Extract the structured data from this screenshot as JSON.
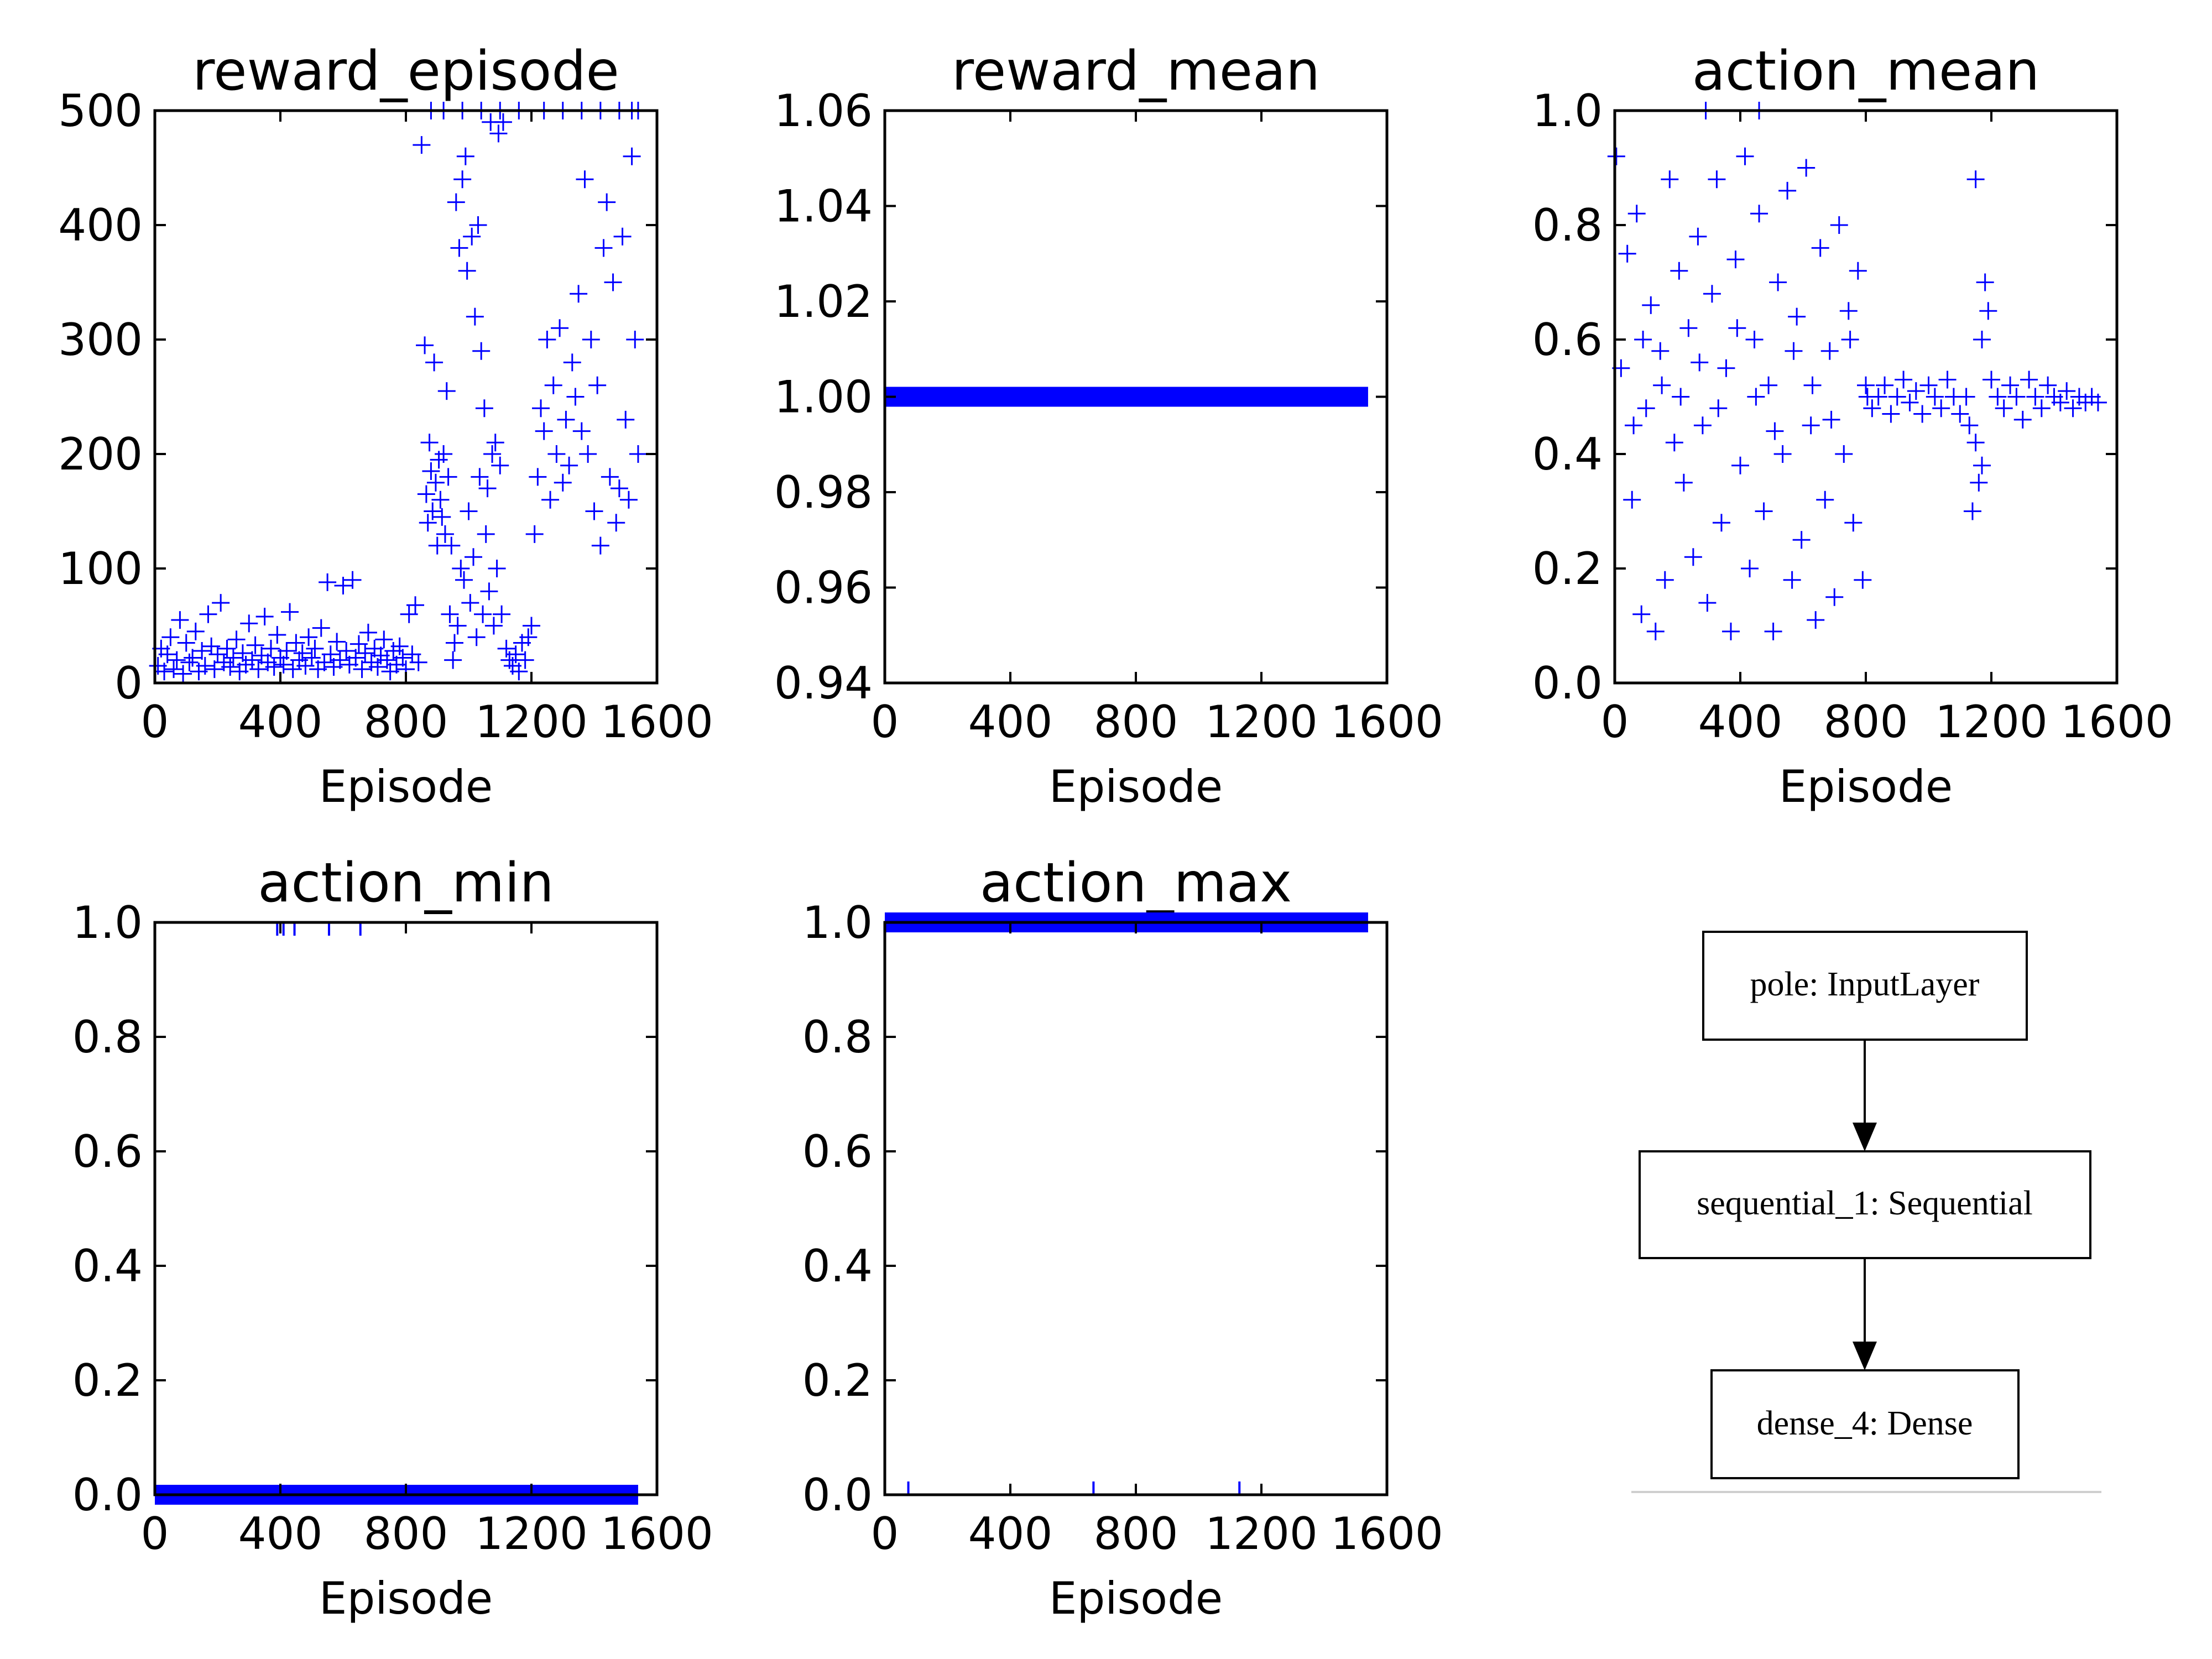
{
  "chart_data": [
    {
      "type": "scatter",
      "title": "reward_episode",
      "xlabel": "Episode",
      "ylabel": "",
      "xlim": [
        0,
        1600
      ],
      "ylim": [
        0,
        500
      ],
      "xticks": [
        "0",
        "400",
        "800",
        "1200",
        "1600"
      ],
      "yticks": [
        "0",
        "100",
        "200",
        "300",
        "400",
        "500"
      ],
      "marker": "+",
      "color": "#0000ff",
      "points": [
        [
          10,
          15
        ],
        [
          20,
          30
        ],
        [
          30,
          10
        ],
        [
          40,
          25
        ],
        [
          50,
          40
        ],
        [
          60,
          12
        ],
        [
          70,
          20
        ],
        [
          80,
          55
        ],
        [
          90,
          8
        ],
        [
          100,
          35
        ],
        [
          110,
          18
        ],
        [
          120,
          22
        ],
        [
          130,
          45
        ],
        [
          140,
          10
        ],
        [
          150,
          28
        ],
        [
          160,
          15
        ],
        [
          170,
          60
        ],
        [
          180,
          32
        ],
        [
          190,
          12
        ],
        [
          200,
          25
        ],
        [
          210,
          70
        ],
        [
          220,
          18
        ],
        [
          230,
          30
        ],
        [
          240,
          14
        ],
        [
          250,
          22
        ],
        [
          260,
          38
        ],
        [
          270,
          10
        ],
        [
          280,
          26
        ],
        [
          290,
          16
        ],
        [
          300,
          52
        ],
        [
          310,
          20
        ],
        [
          320,
          33
        ],
        [
          330,
          12
        ],
        [
          340,
          24
        ],
        [
          350,
          58
        ],
        [
          360,
          18
        ],
        [
          370,
          30
        ],
        [
          380,
          14
        ],
        [
          390,
          42
        ],
        [
          400,
          22
        ],
        [
          410,
          16
        ],
        [
          420,
          28
        ],
        [
          430,
          62
        ],
        [
          440,
          12
        ],
        [
          450,
          35
        ],
        [
          460,
          20
        ],
        [
          470,
          26
        ],
        [
          480,
          15
        ],
        [
          490,
          40
        ],
        [
          500,
          22
        ],
        [
          510,
          30
        ],
        [
          520,
          12
        ],
        [
          530,
          48
        ],
        [
          540,
          18
        ],
        [
          550,
          88
        ],
        [
          560,
          25
        ],
        [
          570,
          14
        ],
        [
          580,
          36
        ],
        [
          590,
          20
        ],
        [
          600,
          85
        ],
        [
          610,
          28
        ],
        [
          620,
          16
        ],
        [
          630,
          90
        ],
        [
          640,
          22
        ],
        [
          650,
          34
        ],
        [
          660,
          12
        ],
        [
          670,
          26
        ],
        [
          680,
          44
        ],
        [
          690,
          18
        ],
        [
          700,
          30
        ],
        [
          710,
          14
        ],
        [
          720,
          24
        ],
        [
          730,
          38
        ],
        [
          740,
          20
        ],
        [
          750,
          10
        ],
        [
          760,
          28
        ],
        [
          770,
          16
        ],
        [
          780,
          32
        ],
        [
          790,
          22
        ],
        [
          800,
          12
        ],
        [
          810,
          60
        ],
        [
          820,
          25
        ],
        [
          830,
          68
        ],
        [
          840,
          18
        ],
        [
          850,
          470
        ],
        [
          860,
          295
        ],
        [
          865,
          165
        ],
        [
          870,
          140
        ],
        [
          875,
          210
        ],
        [
          880,
          185
        ],
        [
          885,
          150
        ],
        [
          890,
          280
        ],
        [
          895,
          175
        ],
        [
          900,
          120
        ],
        [
          905,
          195
        ],
        [
          910,
          160
        ],
        [
          915,
          145
        ],
        [
          920,
          200
        ],
        [
          925,
          130
        ],
        [
          930,
          255
        ],
        [
          935,
          180
        ],
        [
          940,
          60
        ],
        [
          945,
          120
        ],
        [
          950,
          20
        ],
        [
          955,
          35
        ],
        [
          960,
          420
        ],
        [
          965,
          50
        ],
        [
          970,
          380
        ],
        [
          975,
          100
        ],
        [
          980,
          440
        ],
        [
          985,
          90
        ],
        [
          990,
          460
        ],
        [
          995,
          360
        ],
        [
          1000,
          150
        ],
        [
          1005,
          70
        ],
        [
          1010,
          390
        ],
        [
          1015,
          110
        ],
        [
          1020,
          320
        ],
        [
          1025,
          40
        ],
        [
          1030,
          400
        ],
        [
          1035,
          180
        ],
        [
          1040,
          290
        ],
        [
          1045,
          60
        ],
        [
          1050,
          240
        ],
        [
          1055,
          130
        ],
        [
          1060,
          170
        ],
        [
          1065,
          80
        ],
        [
          1070,
          490
        ],
        [
          1075,
          200
        ],
        [
          1080,
          50
        ],
        [
          1085,
          210
        ],
        [
          1090,
          100
        ],
        [
          1095,
          480
        ],
        [
          1100,
          190
        ],
        [
          1105,
          60
        ],
        [
          1110,
          490
        ],
        [
          1120,
          30
        ],
        [
          1130,
          20
        ],
        [
          1140,
          15
        ],
        [
          1150,
          25
        ],
        [
          1160,
          10
        ],
        [
          1170,
          35
        ],
        [
          1180,
          20
        ],
        [
          1190,
          40
        ],
        [
          1200,
          50
        ],
        [
          1210,
          130
        ],
        [
          1220,
          180
        ],
        [
          1230,
          240
        ],
        [
          1240,
          220
        ],
        [
          1250,
          300
        ],
        [
          1260,
          160
        ],
        [
          1270,
          260
        ],
        [
          1280,
          200
        ],
        [
          1290,
          310
        ],
        [
          1300,
          175
        ],
        [
          1310,
          230
        ],
        [
          1320,
          190
        ],
        [
          1330,
          280
        ],
        [
          1340,
          250
        ],
        [
          1350,
          340
        ],
        [
          1360,
          220
        ],
        [
          1370,
          440
        ],
        [
          1380,
          200
        ],
        [
          1390,
          300
        ],
        [
          1400,
          150
        ],
        [
          1410,
          260
        ],
        [
          1420,
          120
        ],
        [
          1430,
          380
        ],
        [
          1440,
          420
        ],
        [
          1450,
          180
        ],
        [
          1460,
          350
        ],
        [
          1470,
          140
        ],
        [
          1480,
          170
        ],
        [
          1490,
          390
        ],
        [
          1500,
          230
        ],
        [
          1510,
          160
        ],
        [
          1520,
          460
        ],
        [
          1530,
          300
        ],
        [
          1540,
          200
        ],
        [
          880,
          500
        ],
        [
          920,
          500
        ],
        [
          980,
          500
        ],
        [
          1040,
          500
        ],
        [
          1100,
          500
        ],
        [
          1160,
          500
        ],
        [
          1240,
          500
        ],
        [
          1300,
          500
        ],
        [
          1360,
          500
        ],
        [
          1420,
          500
        ],
        [
          1480,
          500
        ],
        [
          1520,
          500
        ],
        [
          1540,
          500
        ]
      ]
    },
    {
      "type": "line",
      "title": "reward_mean",
      "xlabel": "Episode",
      "ylabel": "",
      "xlim": [
        0,
        1600
      ],
      "ylim": [
        0.94,
        1.06
      ],
      "xticks": [
        "0",
        "400",
        "800",
        "1200",
        "1600"
      ],
      "yticks": [
        "0.94",
        "0.96",
        "0.98",
        "1.00",
        "1.02",
        "1.04",
        "1.06"
      ],
      "color": "#0000ff",
      "series": [
        {
          "x": [
            0,
            1540
          ],
          "y": [
            1.0,
            1.0
          ]
        }
      ]
    },
    {
      "type": "scatter",
      "title": "action_mean",
      "xlabel": "Episode",
      "ylabel": "",
      "xlim": [
        0,
        1600
      ],
      "ylim": [
        0.0,
        1.0
      ],
      "xticks": [
        "0",
        "400",
        "800",
        "1200",
        "1600"
      ],
      "yticks": [
        "0.0",
        "0.2",
        "0.4",
        "0.6",
        "0.8",
        "1.0"
      ],
      "marker": "+",
      "color": "#0000ff",
      "points": [
        [
          5,
          0.92
        ],
        [
          20,
          0.55
        ],
        [
          40,
          0.75
        ],
        [
          55,
          0.32
        ],
        [
          70,
          0.82
        ],
        [
          85,
          0.12
        ],
        [
          100,
          0.48
        ],
        [
          115,
          0.66
        ],
        [
          130,
          0.09
        ],
        [
          145,
          0.58
        ],
        [
          160,
          0.18
        ],
        [
          175,
          0.88
        ],
        [
          190,
          0.42
        ],
        [
          205,
          0.72
        ],
        [
          220,
          0.35
        ],
        [
          235,
          0.62
        ],
        [
          250,
          0.22
        ],
        [
          265,
          0.78
        ],
        [
          280,
          0.45
        ],
        [
          295,
          0.14
        ],
        [
          310,
          0.68
        ],
        [
          325,
          0.88
        ],
        [
          340,
          0.28
        ],
        [
          355,
          0.55
        ],
        [
          370,
          0.09
        ],
        [
          385,
          0.74
        ],
        [
          400,
          0.38
        ],
        [
          415,
          0.92
        ],
        [
          430,
          0.2
        ],
        [
          445,
          0.6
        ],
        [
          460,
          0.82
        ],
        [
          475,
          0.3
        ],
        [
          490,
          0.52
        ],
        [
          505,
          0.09
        ],
        [
          520,
          0.7
        ],
        [
          535,
          0.4
        ],
        [
          550,
          0.86
        ],
        [
          565,
          0.18
        ],
        [
          580,
          0.64
        ],
        [
          595,
          0.25
        ],
        [
          610,
          0.9
        ],
        [
          625,
          0.45
        ],
        [
          640,
          0.11
        ],
        [
          655,
          0.76
        ],
        [
          670,
          0.32
        ],
        [
          685,
          0.58
        ],
        [
          700,
          0.15
        ],
        [
          715,
          0.8
        ],
        [
          730,
          0.4
        ],
        [
          745,
          0.65
        ],
        [
          760,
          0.28
        ],
        [
          775,
          0.72
        ],
        [
          790,
          0.18
        ],
        [
          805,
          0.5
        ],
        [
          60,
          0.45
        ],
        [
          90,
          0.6
        ],
        [
          150,
          0.52
        ],
        [
          210,
          0.5
        ],
        [
          270,
          0.56
        ],
        [
          330,
          0.48
        ],
        [
          390,
          0.62
        ],
        [
          450,
          0.5
        ],
        [
          510,
          0.44
        ],
        [
          570,
          0.58
        ],
        [
          630,
          0.52
        ],
        [
          690,
          0.46
        ],
        [
          750,
          0.6
        ],
        [
          800,
          0.52
        ],
        [
          820,
          0.48
        ],
        [
          840,
          0.5
        ],
        [
          860,
          0.52
        ],
        [
          880,
          0.47
        ],
        [
          900,
          0.5
        ],
        [
          920,
          0.53
        ],
        [
          940,
          0.49
        ],
        [
          960,
          0.51
        ],
        [
          980,
          0.47
        ],
        [
          1000,
          0.52
        ],
        [
          1020,
          0.5
        ],
        [
          1040,
          0.48
        ],
        [
          1060,
          0.53
        ],
        [
          1080,
          0.5
        ],
        [
          1100,
          0.47
        ],
        [
          1120,
          0.5
        ],
        [
          1140,
          0.3
        ],
        [
          1150,
          0.42
        ],
        [
          1160,
          0.35
        ],
        [
          1170,
          0.6
        ],
        [
          1180,
          0.7
        ],
        [
          1190,
          0.65
        ],
        [
          1200,
          0.53
        ],
        [
          1220,
          0.5
        ],
        [
          1240,
          0.48
        ],
        [
          1260,
          0.52
        ],
        [
          1280,
          0.5
        ],
        [
          1300,
          0.46
        ],
        [
          1320,
          0.53
        ],
        [
          1340,
          0.5
        ],
        [
          1360,
          0.48
        ],
        [
          1380,
          0.52
        ],
        [
          1400,
          0.5
        ],
        [
          1420,
          0.49
        ],
        [
          1440,
          0.51
        ],
        [
          1460,
          0.48
        ],
        [
          1480,
          0.5
        ],
        [
          1500,
          0.49
        ],
        [
          1520,
          0.5
        ],
        [
          1540,
          0.49
        ],
        [
          1150,
          0.88
        ],
        [
          1130,
          0.45
        ],
        [
          1170,
          0.38
        ],
        [
          290,
          1.0
        ],
        [
          460,
          1.0
        ]
      ]
    },
    {
      "type": "line",
      "title": "action_min",
      "xlabel": "Episode",
      "ylabel": "",
      "xlim": [
        0,
        1600
      ],
      "ylim": [
        0.0,
        1.0
      ],
      "xticks": [
        "0",
        "400",
        "800",
        "1200",
        "1600"
      ],
      "yticks": [
        "0.0",
        "0.2",
        "0.4",
        "0.6",
        "0.8",
        "1.0"
      ],
      "color": "#0000ff",
      "series": [
        {
          "x": [
            0,
            1540
          ],
          "y": [
            0.0,
            0.0
          ]
        }
      ],
      "outliers_x": [
        390,
        410,
        445,
        555,
        655
      ],
      "outliers_y": 1.0
    },
    {
      "type": "line",
      "title": "action_max",
      "xlabel": "Episode",
      "ylabel": "",
      "xlim": [
        0,
        1600
      ],
      "ylim": [
        0.0,
        1.0
      ],
      "xticks": [
        "0",
        "400",
        "800",
        "1200",
        "1600"
      ],
      "yticks": [
        "0.0",
        "0.2",
        "0.4",
        "0.6",
        "0.8",
        "1.0"
      ],
      "color": "#0000ff",
      "series": [
        {
          "x": [
            0,
            1540
          ],
          "y": [
            1.0,
            1.0
          ]
        }
      ],
      "outliers_x": [
        75,
        665,
        1130
      ],
      "outliers_y": 0.0
    }
  ],
  "diagram": {
    "nodes": [
      {
        "id": "pole",
        "label": "pole: InputLayer"
      },
      {
        "id": "seq",
        "label": "sequential_1: Sequential"
      },
      {
        "id": "dense",
        "label": "dense_4: Dense"
      }
    ],
    "edges": [
      [
        "pole",
        "seq"
      ],
      [
        "seq",
        "dense"
      ]
    ]
  }
}
